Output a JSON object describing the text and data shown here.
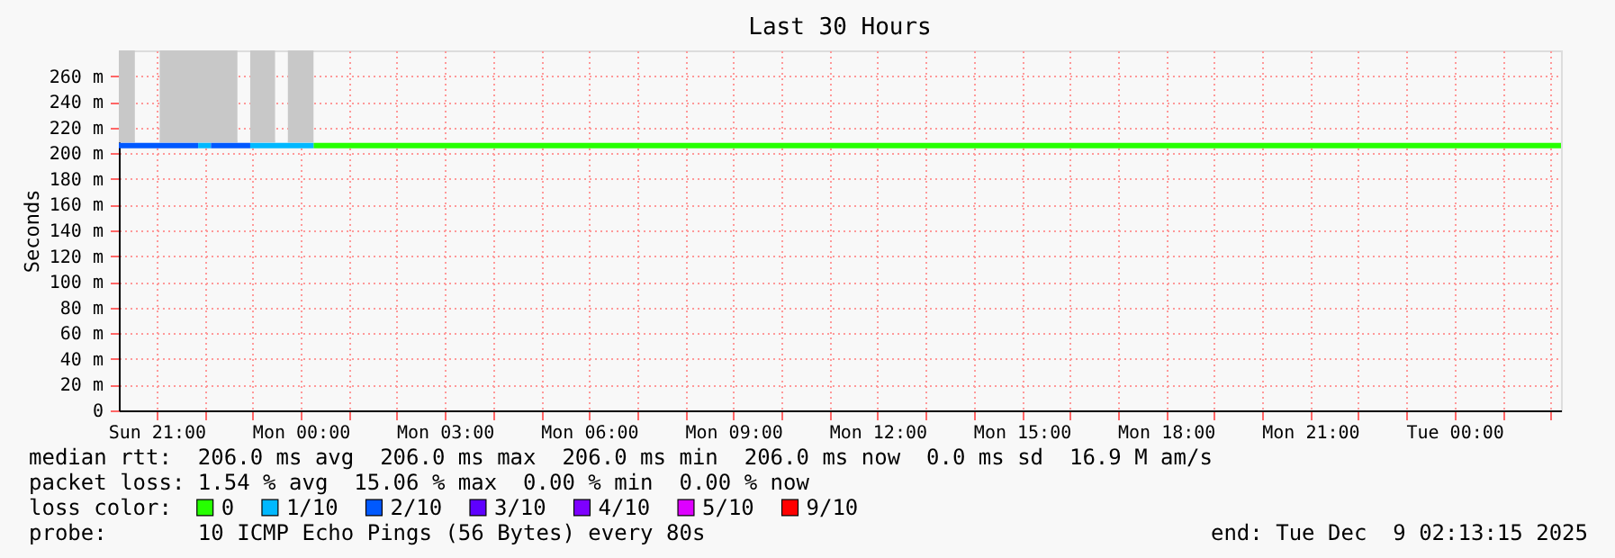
{
  "chart_data": {
    "type": "line",
    "title": "Last 30 Hours",
    "ylabel": "Seconds",
    "legend_title": "loss color:",
    "legend": "bottom",
    "grid": true,
    "line_style": "solid",
    "marker": "none",
    "xlim": [
      "2025-12-07T20:13",
      "2025-12-09T02:13"
    ],
    "ylim": [
      0,
      280
    ],
    "xticks": [
      {
        "value": "2025-12-07T21:00",
        "label": "Sun 21:00"
      },
      {
        "value": "2025-12-07T22:00",
        "label": null
      },
      {
        "value": "2025-12-07T23:00",
        "label": null
      },
      {
        "value": "2025-12-08T00:00",
        "label": "Mon 00:00"
      },
      {
        "value": "2025-12-08T01:00",
        "label": null
      },
      {
        "value": "2025-12-08T02:00",
        "label": null
      },
      {
        "value": "2025-12-08T03:00",
        "label": "Mon 03:00"
      },
      {
        "value": "2025-12-08T04:00",
        "label": null
      },
      {
        "value": "2025-12-08T05:00",
        "label": null
      },
      {
        "value": "2025-12-08T06:00",
        "label": "Mon 06:00"
      },
      {
        "value": "2025-12-08T07:00",
        "label": null
      },
      {
        "value": "2025-12-08T08:00",
        "label": null
      },
      {
        "value": "2025-12-08T09:00",
        "label": "Mon 09:00"
      },
      {
        "value": "2025-12-08T10:00",
        "label": null
      },
      {
        "value": "2025-12-08T11:00",
        "label": null
      },
      {
        "value": "2025-12-08T12:00",
        "label": "Mon 12:00"
      },
      {
        "value": "2025-12-08T13:00",
        "label": null
      },
      {
        "value": "2025-12-08T14:00",
        "label": null
      },
      {
        "value": "2025-12-08T15:00",
        "label": "Mon 15:00"
      },
      {
        "value": "2025-12-08T16:00",
        "label": null
      },
      {
        "value": "2025-12-08T17:00",
        "label": null
      },
      {
        "value": "2025-12-08T18:00",
        "label": "Mon 18:00"
      },
      {
        "value": "2025-12-08T19:00",
        "label": null
      },
      {
        "value": "2025-12-08T20:00",
        "label": null
      },
      {
        "value": "2025-12-08T21:00",
        "label": "Mon 21:00"
      },
      {
        "value": "2025-12-08T22:00",
        "label": null
      },
      {
        "value": "2025-12-08T23:00",
        "label": null
      },
      {
        "value": "2025-12-09T00:00",
        "label": "Tue 00:00"
      },
      {
        "value": "2025-12-09T01:00",
        "label": null
      },
      {
        "value": "2025-12-09T02:00",
        "label": null
      }
    ],
    "yticks": [
      0,
      {
        "value": 20,
        "label": "20 m"
      },
      {
        "value": 40,
        "label": "40 m"
      },
      {
        "value": 60,
        "label": "60 m"
      },
      {
        "value": 80,
        "label": "80 m"
      },
      {
        "value": 100,
        "label": "100 m"
      },
      {
        "value": 120,
        "label": "120 m"
      },
      {
        "value": 140,
        "label": "140 m"
      },
      {
        "value": 160,
        "label": "160 m"
      },
      {
        "value": 180,
        "label": "180 m"
      },
      {
        "value": 200,
        "label": "200 m"
      },
      {
        "value": 220,
        "label": "220 m"
      },
      {
        "value": 240,
        "label": "240 m"
      },
      {
        "value": 260,
        "label": "260 m"
      }
    ],
    "series": [
      {
        "type": "line",
        "color": "#c8c8c8",
        "x": [
          "2025-12-07T20:13",
          "2025-12-07T20:33",
          "2025-12-07T20:48",
          "2025-12-07T21:04",
          "2025-12-07T22:41",
          "2025-12-07T22:48",
          "2025-12-07T22:57",
          "2025-12-07T23:28",
          "2025-12-07T23:36",
          "2025-12-07T23:44",
          "2025-12-08T00:16"
        ],
        "values": [
          209,
          209,
          null,
          209,
          209,
          null,
          209,
          209,
          null,
          209,
          209
        ],
        "upper": [
          280,
          280,
          null,
          280,
          280,
          null,
          280,
          280,
          null,
          280,
          280
        ],
        "lower": [
          209,
          209,
          null,
          209,
          209,
          null,
          209,
          209,
          null,
          209,
          209
        ]
      },
      {
        "name": "0",
        "color": "#26ff00",
        "x": [
          "2025-12-08T00:16",
          "2025-12-09T02:13"
        ],
        "values": [
          206,
          206
        ]
      },
      {
        "name": "1/10",
        "color": "#00b8ff",
        "x": [
          "2025-12-07T21:52",
          "2025-12-07T22:08",
          "2025-12-07T22:30",
          "2025-12-07T22:57",
          "2025-12-08T00:16"
        ],
        "values": [
          206,
          206,
          null,
          206,
          206
        ]
      },
      {
        "name": "2/10",
        "color": "#0059ff",
        "x": [
          "2025-12-07T20:13",
          "2025-12-07T21:52",
          "2025-12-07T22:00",
          "2025-12-07T22:08",
          "2025-12-07T22:57"
        ],
        "values": [
          206,
          206,
          null,
          206,
          206
        ]
      },
      {
        "name": "3/10",
        "color": "#5e00ff"
      },
      {
        "name": "4/10",
        "color": "#7e00ff"
      },
      {
        "name": "5/10",
        "color": "#dd00ff"
      },
      {
        "name": "9/10",
        "color": "#ff0000"
      }
    ],
    "annotations": [
      "median rtt:  206.0 ms avg  206.0 ms max  206.0 ms min  206.0 ms now  0.0 ms sd  16.9 M am/s",
      "packet loss: 1.54 % avg  15.06 % max  0.00 % min  0.00 % now",
      "probe:       10 ICMP Echo Pings (56 Bytes) every 80s",
      "end: Tue Dec  9 02:13:15 2025"
    ]
  }
}
